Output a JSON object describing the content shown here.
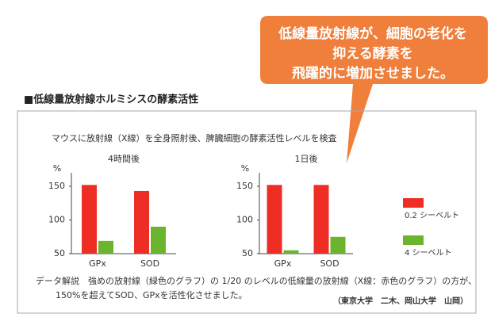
{
  "callout": [
    "低線量放射線が、細胞の老化を",
    "抑える酵素を",
    "飛躍的に増加させました。"
  ],
  "heading": "■低線量放射線ホルミシスの酵素活性",
  "description": "マウスに放射線（X線）を全身照射後、脾臓細胞の酵素活性レベルを検査",
  "note": [
    "データ解説　強めの放射線（緑色のグラフ）の 1/20 のレベルの低線量の放射線（X線：赤色のグラフ）の方が、",
    "150%を超えてSOD、GPxを活性化させました。"
  ],
  "credit": "（東京大学　二木、岡山大学　山岡）",
  "chart_data": [
    {
      "type": "bar",
      "title": "4時間後",
      "y_label": "%",
      "categories": [
        "GPx",
        "SOD"
      ],
      "series": [
        {
          "name": "0.2 シーベルト",
          "color": "#ee2e24",
          "values": [
            152,
            143
          ]
        },
        {
          "name": "4 シーベルト",
          "color": "#6bb52e",
          "values": [
            69,
            90
          ]
        }
      ],
      "ylim": [
        50,
        170
      ],
      "yticks": [
        50,
        100,
        150
      ]
    },
    {
      "type": "bar",
      "title": "1日後",
      "y_label": "%",
      "categories": [
        "GPx",
        "SOD"
      ],
      "series": [
        {
          "color": "#ee2e24",
          "values": [
            152,
            152
          ]
        },
        {
          "color": "#6bb52e",
          "values": [
            55,
            75
          ]
        }
      ],
      "ylim": [
        50,
        170
      ],
      "yticks": [
        50,
        100,
        150
      ]
    }
  ]
}
